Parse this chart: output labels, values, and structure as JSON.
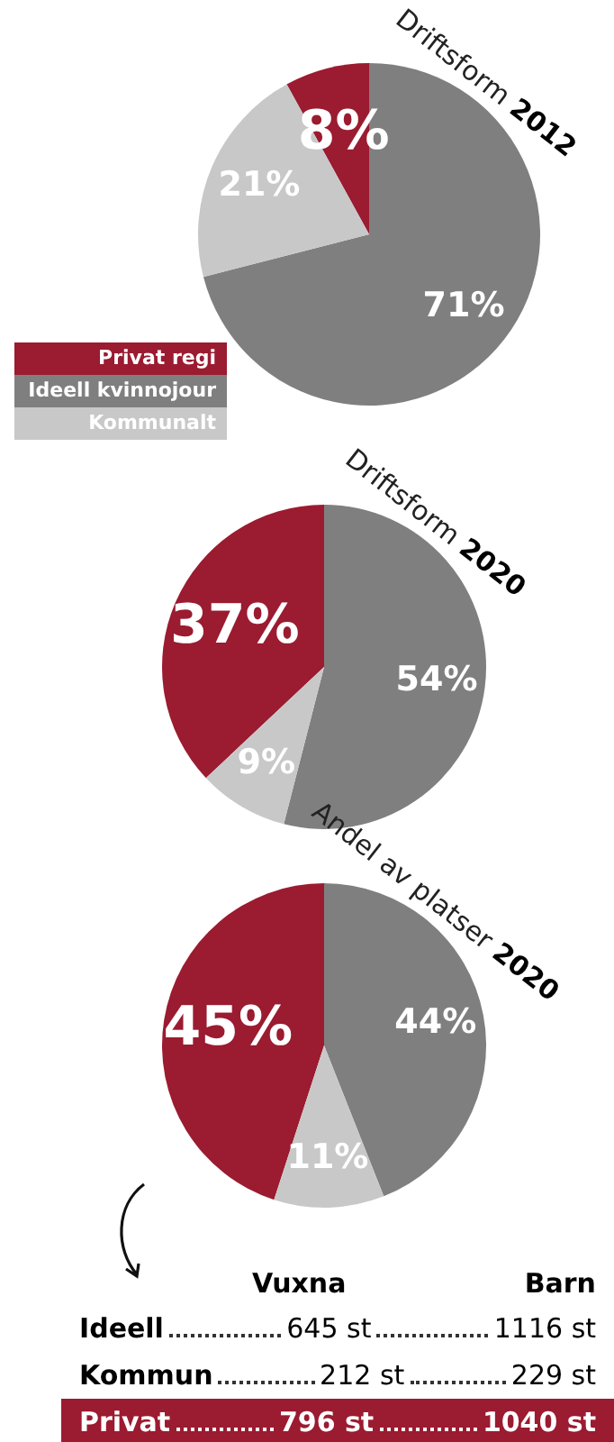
{
  "chart_data": [
    {
      "type": "pie",
      "title": "Driftsform 2012",
      "categories": [
        "Privat regi",
        "Ideell kvinnojour",
        "Kommunalt"
      ],
      "values": [
        8,
        71,
        21
      ],
      "colors": [
        "#9b1b30",
        "#7f7f7f",
        "#c8c8c8"
      ],
      "value_labels": [
        "8%",
        "71%",
        "21%"
      ],
      "legend": "bottom left"
    },
    {
      "type": "pie",
      "title": "Driftsform 2020",
      "categories": [
        null,
        null,
        null
      ],
      "values": [
        37,
        54,
        9
      ],
      "colors": [
        "#9b1b30",
        "#7f7f7f",
        "#c8c8c8"
      ],
      "value_labels": [
        "37%",
        "54%",
        "9%"
      ]
    },
    {
      "type": "pie",
      "title": "Andel av platser 2020",
      "categories": [
        null,
        null,
        null
      ],
      "values": [
        45,
        44,
        11
      ],
      "colors": [
        "#9b1b30",
        "#7f7f7f",
        "#c8c8c8"
      ],
      "value_labels": [
        "45%",
        "44%",
        "11%"
      ]
    },
    {
      "type": "other",
      "categories": [
        "Ideell",
        "Kommun",
        "Privat"
      ],
      "colors": [
        null,
        null,
        "#9b1b30"
      ],
      "series": [
        {
          "name": "Vuxna",
          "values": [
            645,
            212,
            796
          ],
          "value_labels": [
            "645 st",
            "212 st",
            "796 st"
          ]
        },
        {
          "name": "Barn",
          "values": [
            1116,
            229,
            1040
          ],
          "value_labels": [
            "1116 st",
            "229 st",
            "1040 st"
          ]
        }
      ]
    }
  ]
}
